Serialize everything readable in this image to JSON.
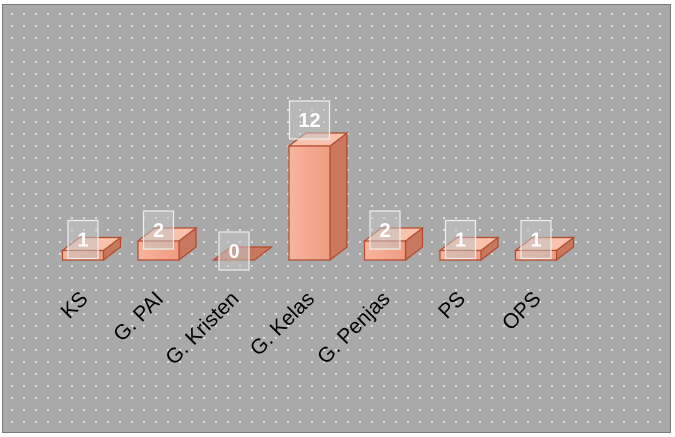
{
  "chart_data": {
    "type": "bar",
    "categories": [
      "KS",
      "G. PAI",
      "G. Kristen",
      "G. Kelas",
      "G. Penjas",
      "PS",
      "OPS"
    ],
    "values": [
      1,
      2,
      0,
      12,
      2,
      1,
      1
    ],
    "title": "",
    "xlabel": "",
    "ylabel": "",
    "ylim": [
      0,
      12
    ],
    "grid": false,
    "legend": "none",
    "bar_style": "3d",
    "colors": {
      "bar_front": "#f4a88e",
      "bar_side": "#c9785f",
      "bar_top": "#f8c2ad",
      "bar_edge": "#b24a2b",
      "background": "#a9a9a9",
      "label_box": "#c4c4c4"
    }
  }
}
